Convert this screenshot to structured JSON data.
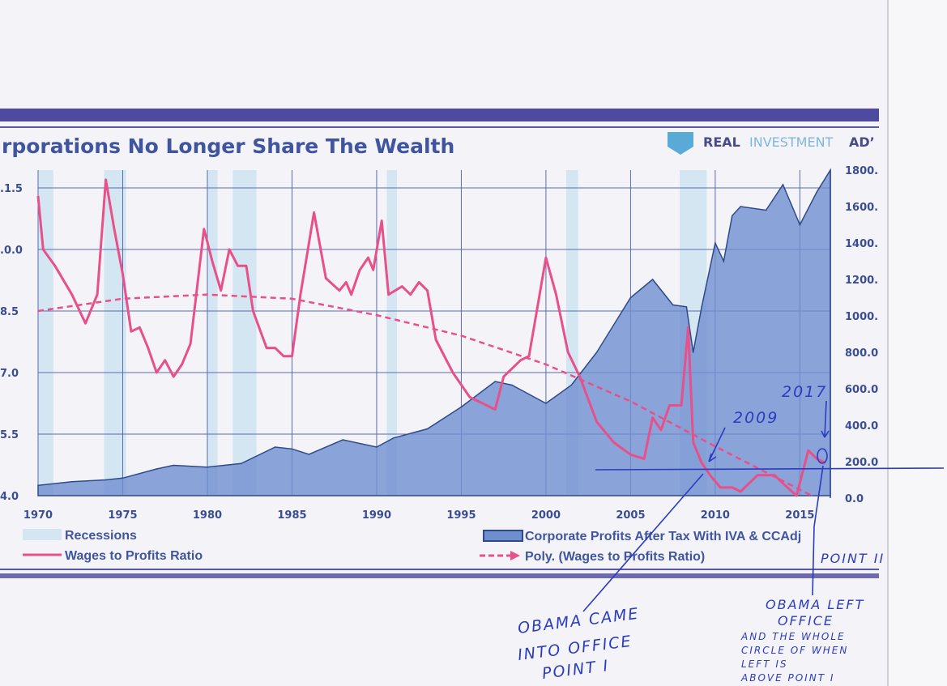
{
  "chart_data": {
    "type": "line",
    "title": "rporations No Longer Share The Wealth",
    "brand": {
      "word1": "REAL",
      "word2": "INVESTMENT",
      "word3": "AD’"
    },
    "x_ticks": [
      "1970",
      "1975",
      "1980",
      "1985",
      "1990",
      "1995",
      "2000",
      "2005",
      "2010",
      "2015"
    ],
    "x_tick_values": [
      1970,
      1975,
      1980,
      1985,
      1990,
      1995,
      2000,
      2005,
      2010,
      2015
    ],
    "xlim": [
      1970,
      2016.8
    ],
    "left_ticks": [
      ".1.5",
      ".0.0",
      "8.5",
      "7.0",
      "5.5",
      "4.0"
    ],
    "left_tick_values": [
      11.5,
      10.0,
      8.5,
      7.0,
      5.5,
      4.0
    ],
    "ylim_left": [
      4.0,
      11.5
    ],
    "right_ticks": [
      "1800.",
      "1600.",
      "1400.",
      "1200.",
      "1000.",
      "800.0",
      "600.0",
      "400.0",
      "200.0",
      "0.0"
    ],
    "right_tick_values": [
      1800,
      1600,
      1400,
      1200,
      1000,
      800,
      600,
      400,
      200,
      0
    ],
    "ylim_right": [
      0,
      1800
    ],
    "grid": true,
    "legend_placement": "bottom",
    "recessions": [
      [
        1970.0,
        1970.9
      ],
      [
        1973.9,
        1975.2
      ],
      [
        1980.0,
        1980.6
      ],
      [
        1981.5,
        1982.9
      ],
      [
        1990.6,
        1991.2
      ],
      [
        2001.2,
        2001.9
      ],
      [
        2007.9,
        2009.5
      ]
    ],
    "series": [
      {
        "name": "Wages to Profits Ratio",
        "axis": "left",
        "color": "#e8508a",
        "points": [
          [
            1970,
            11.3
          ],
          [
            1970.3,
            10.0
          ],
          [
            1971,
            9.6
          ],
          [
            1972,
            8.9
          ],
          [
            1972.8,
            8.2
          ],
          [
            1973.5,
            8.9
          ],
          [
            1974,
            11.7
          ],
          [
            1974.5,
            10.5
          ],
          [
            1975,
            9.4
          ],
          [
            1975.5,
            8.0
          ],
          [
            1976,
            8.1
          ],
          [
            1976.5,
            7.6
          ],
          [
            1977,
            7.0
          ],
          [
            1977.5,
            7.3
          ],
          [
            1978,
            6.9
          ],
          [
            1978.5,
            7.2
          ],
          [
            1979,
            7.7
          ],
          [
            1979.8,
            10.5
          ],
          [
            1980.3,
            9.7
          ],
          [
            1980.8,
            9.0
          ],
          [
            1981.3,
            10.0
          ],
          [
            1981.8,
            9.6
          ],
          [
            1982.3,
            9.6
          ],
          [
            1982.7,
            8.5
          ],
          [
            1983.5,
            7.6
          ],
          [
            1984,
            7.6
          ],
          [
            1984.5,
            7.4
          ],
          [
            1985,
            7.4
          ],
          [
            1985.5,
            8.9
          ],
          [
            1986.3,
            10.9
          ],
          [
            1987,
            9.3
          ],
          [
            1987.8,
            9.0
          ],
          [
            1988.2,
            9.2
          ],
          [
            1988.5,
            8.9
          ],
          [
            1989,
            9.5
          ],
          [
            1989.5,
            9.8
          ],
          [
            1989.8,
            9.5
          ],
          [
            1990.3,
            10.7
          ],
          [
            1990.7,
            8.9
          ],
          [
            1991.5,
            9.1
          ],
          [
            1992,
            8.9
          ],
          [
            1992.5,
            9.2
          ],
          [
            1993,
            9.0
          ],
          [
            1993.5,
            7.8
          ],
          [
            1994.5,
            7.0
          ],
          [
            1995.5,
            6.4
          ],
          [
            1996.5,
            6.2
          ],
          [
            1997,
            6.1
          ],
          [
            1997.5,
            6.9
          ],
          [
            1998.5,
            7.3
          ],
          [
            1999,
            7.4
          ],
          [
            1999.5,
            8.6
          ],
          [
            2000,
            9.8
          ],
          [
            2000.6,
            8.9
          ],
          [
            2001.3,
            7.5
          ],
          [
            2002,
            6.9
          ],
          [
            2003,
            5.8
          ],
          [
            2004,
            5.3
          ],
          [
            2005,
            5.0
          ],
          [
            2005.8,
            4.9
          ],
          [
            2006.3,
            5.9
          ],
          [
            2006.8,
            5.6
          ],
          [
            2007.3,
            6.2
          ],
          [
            2008,
            6.2
          ],
          [
            2008.4,
            8.1
          ],
          [
            2008.7,
            5.3
          ],
          [
            2009.2,
            4.8
          ],
          [
            2009.7,
            4.5
          ],
          [
            2010.3,
            4.2
          ],
          [
            2011,
            4.2
          ],
          [
            2011.5,
            4.1
          ],
          [
            2012.5,
            4.5
          ],
          [
            2013.5,
            4.5
          ],
          [
            2014,
            4.3
          ],
          [
            2014.8,
            4.0
          ],
          [
            2015.5,
            5.1
          ],
          [
            2016,
            4.9
          ],
          [
            2016.5,
            4.8
          ]
        ]
      },
      {
        "name": "Poly. (Wages to Profits Ratio)",
        "axis": "left",
        "color": "#e8508a",
        "style": "dashed",
        "points": [
          [
            1970,
            8.5
          ],
          [
            1975,
            8.8
          ],
          [
            1980,
            8.9
          ],
          [
            1985,
            8.8
          ],
          [
            1990,
            8.4
          ],
          [
            1995,
            7.9
          ],
          [
            2000,
            7.2
          ],
          [
            2005,
            6.3
          ],
          [
            2010,
            5.2
          ],
          [
            2015.7,
            4.0
          ]
        ]
      },
      {
        "name": "Corporate Profits After Tax With IVA & CCAdj",
        "axis": "right",
        "color": "#4f6fb3",
        "style": "area",
        "points": [
          [
            1970,
            70
          ],
          [
            1972,
            90
          ],
          [
            1974,
            100
          ],
          [
            1975,
            110
          ],
          [
            1977,
            160
          ],
          [
            1978,
            180
          ],
          [
            1980,
            170
          ],
          [
            1982,
            190
          ],
          [
            1984,
            280
          ],
          [
            1985,
            270
          ],
          [
            1986,
            240
          ],
          [
            1988,
            320
          ],
          [
            1990,
            280
          ],
          [
            1991,
            330
          ],
          [
            1993,
            380
          ],
          [
            1995,
            500
          ],
          [
            1997,
            640
          ],
          [
            1998,
            620
          ],
          [
            2000,
            520
          ],
          [
            2001.5,
            620
          ],
          [
            2003,
            800
          ],
          [
            2005,
            1100
          ],
          [
            2006.3,
            1200
          ],
          [
            2007.5,
            1060
          ],
          [
            2008.3,
            1050
          ],
          [
            2008.7,
            800
          ],
          [
            2009.2,
            1050
          ],
          [
            2010,
            1400
          ],
          [
            2010.5,
            1300
          ],
          [
            2011,
            1550
          ],
          [
            2011.5,
            1600
          ],
          [
            2013,
            1580
          ],
          [
            2014,
            1720
          ],
          [
            2015,
            1500
          ],
          [
            2016,
            1680
          ],
          [
            2016.8,
            1800
          ]
        ]
      }
    ],
    "legend": {
      "recessions": "Recessions",
      "wages": "Wages to Profits Ratio",
      "profits": "Corporate Profits After Tax With IVA & CCAdj",
      "poly": "Poly. (Wages to Profits Ratio)"
    },
    "annotations": {
      "year_2009": "2009",
      "year_2017": "2017",
      "came_1": "OBAMA CAME",
      "came_2": "INTO OFFICE",
      "came_3": "POINT I",
      "point_2": "POINT II",
      "left_1": "OBAMA LEFT",
      "left_2": "OFFICE",
      "left_3": "AND THE WHOLE",
      "left_4": "CIRCLE OF WHEN",
      "left_5": "LEFT IS",
      "left_6": "ABOVE POINT I"
    }
  }
}
